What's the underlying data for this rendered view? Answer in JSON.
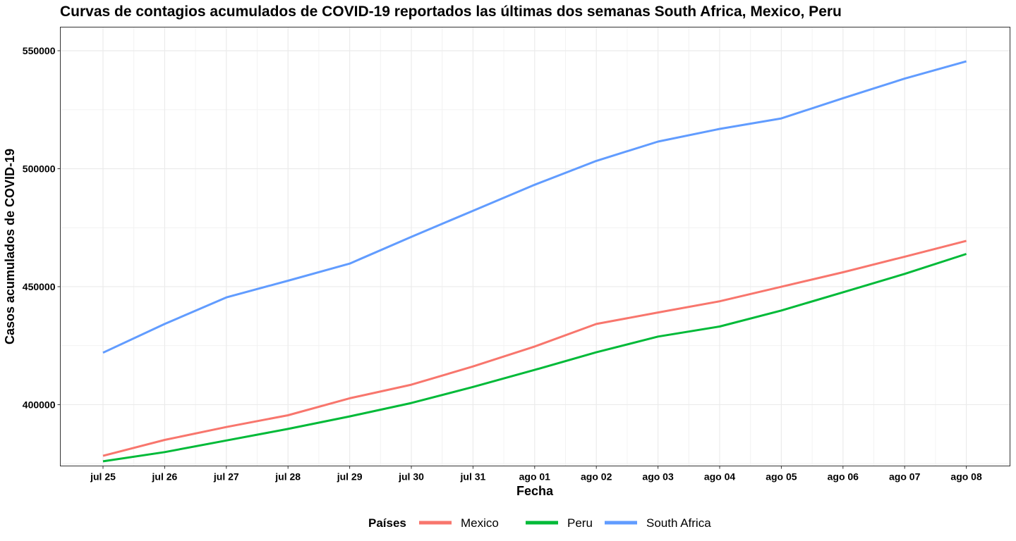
{
  "chart_data": {
    "type": "line",
    "title": "Curvas de contagios acumulados de COVID-19 reportados las últimas dos semanas South Africa, Mexico, Peru",
    "xlabel": "Fecha",
    "ylabel": "Casos acumulados de COVID-19",
    "categories": [
      "jul 25",
      "jul 26",
      "jul 27",
      "jul 28",
      "jul 29",
      "jul 30",
      "jul 31",
      "ago 01",
      "ago 02",
      "ago 03",
      "ago 04",
      "ago 05",
      "ago 06",
      "ago 07",
      "ago 08"
    ],
    "y_ticks": [
      400000,
      450000,
      500000,
      550000
    ],
    "y_tick_labels": [
      "400000",
      "450000",
      "500000",
      "550000"
    ],
    "ylim": [
      374000,
      560000
    ],
    "grid": true,
    "legend_title": "Países",
    "legend_position": "bottom",
    "series": [
      {
        "name": "Mexico",
        "color": "#F8766D",
        "values": [
          378285,
          385036,
          390516,
          395489,
          402697,
          408449,
          416179,
          424637,
          434193,
          439046,
          443813,
          449961,
          456100,
          462690,
          469407
        ]
      },
      {
        "name": "Peru",
        "color": "#00BA38",
        "values": [
          375961,
          379884,
          384797,
          389717,
          395005,
          400683,
          407492,
          414735,
          422183,
          428850,
          433100,
          439890,
          447624,
          455409,
          463875
        ]
      },
      {
        "name": "South Africa",
        "color": "#619CFF",
        "values": [
          421996,
          434200,
          445433,
          452529,
          459761,
          471123,
          482169,
          493183,
          503290,
          511485,
          516862,
          521318,
          529877,
          538184,
          545476
        ]
      }
    ]
  }
}
